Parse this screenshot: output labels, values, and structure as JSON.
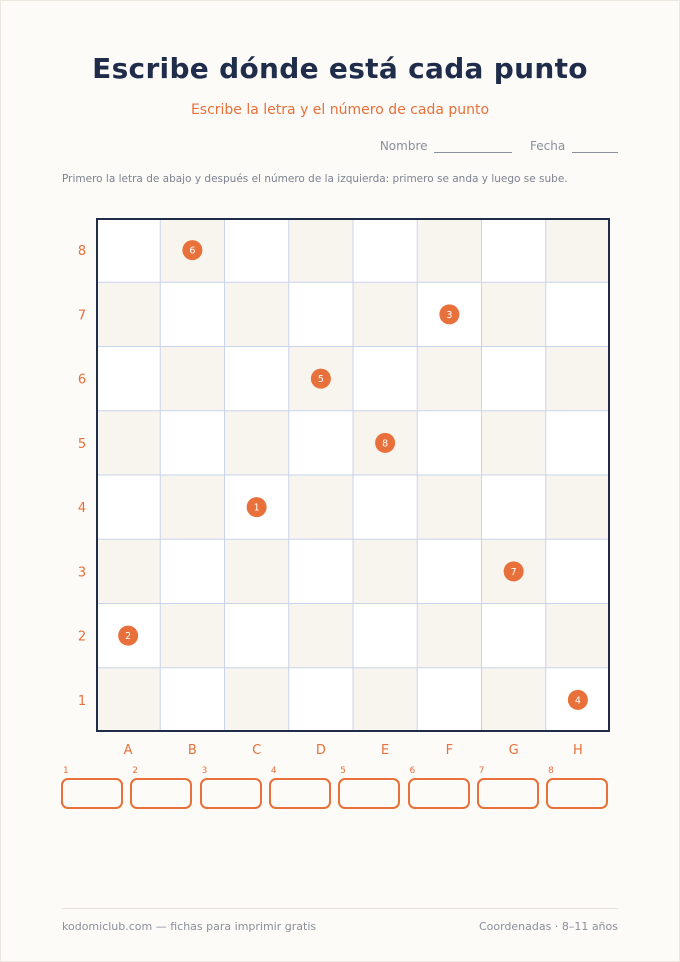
{
  "title": "Escribe dónde está cada punto",
  "subtitle": "Escribe la letra y el número de cada punto",
  "name_label": "Nombre",
  "date_label": "Fecha",
  "instructions": "Primero la letra de abajo y después el número de la izquierda: primero se anda y luego se sube.",
  "grid": {
    "columns": [
      "A",
      "B",
      "C",
      "D",
      "E",
      "F",
      "G",
      "H"
    ],
    "rows": [
      "1",
      "2",
      "3",
      "4",
      "5",
      "6",
      "7",
      "8"
    ],
    "points": [
      {
        "label": "1",
        "col": "C",
        "row": 4
      },
      {
        "label": "2",
        "col": "A",
        "row": 2
      },
      {
        "label": "3",
        "col": "F",
        "row": 7
      },
      {
        "label": "4",
        "col": "H",
        "row": 1
      },
      {
        "label": "5",
        "col": "D",
        "row": 6
      },
      {
        "label": "6",
        "col": "B",
        "row": 8
      },
      {
        "label": "7",
        "col": "G",
        "row": 3
      },
      {
        "label": "8",
        "col": "E",
        "row": 5
      }
    ]
  },
  "answers": [
    "1",
    "2",
    "3",
    "4",
    "5",
    "6",
    "7",
    "8"
  ],
  "footer": {
    "left": "kodomiclub.com — fichas para imprimir gratis",
    "right": "Coordenadas · 8–11 años"
  },
  "colors": {
    "accent": "#e8703a",
    "navy": "#1f2d4a",
    "cell_shade": "#f8f5ef",
    "grid_line": "#c9d3ea"
  }
}
